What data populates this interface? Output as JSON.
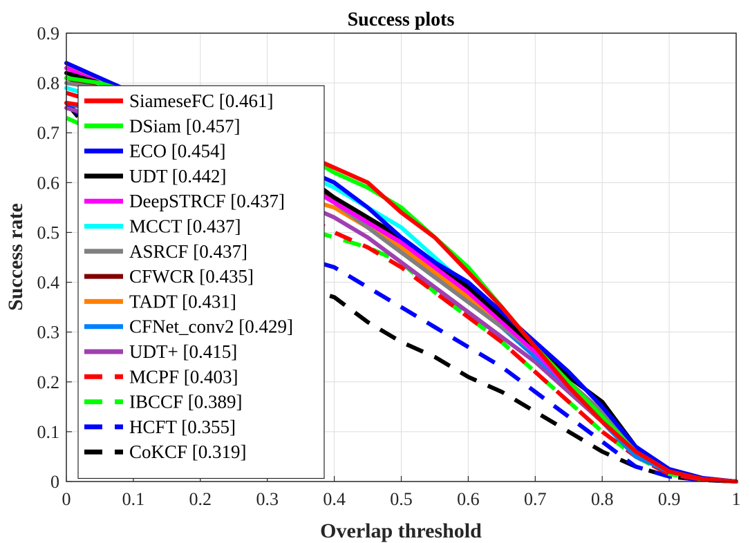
{
  "chart_data": {
    "type": "line",
    "title": "Success plots",
    "xlabel": "Overlap threshold",
    "ylabel": "Success rate",
    "xlim": [
      0,
      1
    ],
    "ylim": [
      0,
      0.9
    ],
    "grid": true,
    "legend_position": "left",
    "x": [
      0,
      0.05,
      0.1,
      0.15,
      0.2,
      0.25,
      0.3,
      0.35,
      0.4,
      0.45,
      0.5,
      0.55,
      0.6,
      0.65,
      0.7,
      0.75,
      0.8,
      0.85,
      0.9,
      0.95,
      1
    ],
    "xticks": [
      "0",
      "0.1",
      "0.2",
      "0.3",
      "0.4",
      "0.5",
      "0.6",
      "0.7",
      "0.8",
      "0.9",
      "1"
    ],
    "yticks": [
      "0",
      "0.1",
      "0.2",
      "0.3",
      "0.4",
      "0.5",
      "0.6",
      "0.7",
      "0.8",
      "0.9"
    ],
    "series": [
      {
        "name": "SiameseFC [0.461]",
        "color": "#ff0000",
        "dashed": false,
        "values": [
          0.76,
          0.75,
          0.74,
          0.73,
          0.72,
          0.71,
          0.69,
          0.66,
          0.63,
          0.6,
          0.54,
          0.49,
          0.42,
          0.35,
          0.27,
          0.19,
          0.12,
          0.06,
          0.02,
          0.005,
          0
        ]
      },
      {
        "name": "DSiam [0.457]",
        "color": "#00ff00",
        "dashed": false,
        "values": [
          0.81,
          0.8,
          0.78,
          0.76,
          0.74,
          0.71,
          0.69,
          0.66,
          0.62,
          0.59,
          0.55,
          0.49,
          0.43,
          0.35,
          0.27,
          0.2,
          0.13,
          0.06,
          0.02,
          0.005,
          0
        ]
      },
      {
        "name": "ECO [0.454]",
        "color": "#0000ff",
        "dashed": false,
        "values": [
          0.84,
          0.81,
          0.78,
          0.75,
          0.72,
          0.69,
          0.66,
          0.63,
          0.6,
          0.55,
          0.49,
          0.44,
          0.4,
          0.34,
          0.28,
          0.22,
          0.15,
          0.07,
          0.025,
          0.007,
          0
        ]
      },
      {
        "name": "UDT [0.442]",
        "color": "#000000",
        "dashed": false,
        "values": [
          0.82,
          0.8,
          0.78,
          0.75,
          0.72,
          0.69,
          0.66,
          0.62,
          0.57,
          0.53,
          0.49,
          0.44,
          0.39,
          0.33,
          0.27,
          0.21,
          0.16,
          0.07,
          0.02,
          0.005,
          0
        ]
      },
      {
        "name": "DeepSTRCF [0.437]",
        "color": "#ff00ff",
        "dashed": false,
        "values": [
          0.83,
          0.8,
          0.77,
          0.74,
          0.71,
          0.68,
          0.64,
          0.6,
          0.56,
          0.52,
          0.48,
          0.43,
          0.38,
          0.32,
          0.26,
          0.19,
          0.13,
          0.06,
          0.02,
          0.005,
          0
        ]
      },
      {
        "name": "MCCT [0.437]",
        "color": "#00ffff",
        "dashed": false,
        "values": [
          0.79,
          0.77,
          0.75,
          0.72,
          0.7,
          0.67,
          0.65,
          0.62,
          0.59,
          0.55,
          0.51,
          0.45,
          0.39,
          0.33,
          0.26,
          0.19,
          0.12,
          0.06,
          0.02,
          0.005,
          0
        ]
      },
      {
        "name": "ASRCF [0.437]",
        "color": "#808080",
        "dashed": false,
        "values": [
          0.8,
          0.79,
          0.78,
          0.76,
          0.73,
          0.69,
          0.65,
          0.6,
          0.56,
          0.51,
          0.46,
          0.41,
          0.36,
          0.31,
          0.26,
          0.2,
          0.14,
          0.06,
          0.02,
          0.005,
          0
        ]
      },
      {
        "name": "CFWCR [0.435]",
        "color": "#800000",
        "dashed": false,
        "values": [
          0.81,
          0.79,
          0.77,
          0.74,
          0.71,
          0.68,
          0.64,
          0.61,
          0.57,
          0.53,
          0.48,
          0.43,
          0.38,
          0.32,
          0.26,
          0.2,
          0.13,
          0.06,
          0.02,
          0.005,
          0
        ]
      },
      {
        "name": "TADT [0.431]",
        "color": "#ff8000",
        "dashed": false,
        "values": [
          0.84,
          0.8,
          0.76,
          0.72,
          0.68,
          0.64,
          0.6,
          0.57,
          0.55,
          0.51,
          0.47,
          0.42,
          0.37,
          0.32,
          0.26,
          0.2,
          0.13,
          0.06,
          0.02,
          0.005,
          0
        ]
      },
      {
        "name": "CFNet_conv2 [0.429]",
        "color": "#0080ff",
        "dashed": false,
        "values": [
          0.76,
          0.74,
          0.72,
          0.7,
          0.68,
          0.66,
          0.63,
          0.6,
          0.56,
          0.52,
          0.47,
          0.42,
          0.37,
          0.31,
          0.25,
          0.19,
          0.12,
          0.05,
          0.02,
          0.005,
          0
        ]
      },
      {
        "name": "UDT+ [0.415]",
        "color": "#a040b0",
        "dashed": false,
        "values": [
          0.75,
          0.73,
          0.71,
          0.68,
          0.65,
          0.62,
          0.59,
          0.56,
          0.53,
          0.49,
          0.44,
          0.39,
          0.34,
          0.29,
          0.24,
          0.18,
          0.12,
          0.05,
          0.02,
          0.005,
          0
        ]
      },
      {
        "name": "MCPF [0.403]",
        "color": "#ff0000",
        "dashed": true,
        "values": [
          0.78,
          0.76,
          0.73,
          0.7,
          0.66,
          0.62,
          0.58,
          0.54,
          0.5,
          0.47,
          0.43,
          0.38,
          0.33,
          0.28,
          0.22,
          0.16,
          0.1,
          0.05,
          0.015,
          0.004,
          0
        ]
      },
      {
        "name": "IBCCF [0.389]",
        "color": "#00ff00",
        "dashed": true,
        "values": [
          0.73,
          0.7,
          0.67,
          0.63,
          0.59,
          0.56,
          0.53,
          0.51,
          0.49,
          0.47,
          0.44,
          0.38,
          0.33,
          0.28,
          0.22,
          0.16,
          0.1,
          0.05,
          0.015,
          0.004,
          0
        ]
      },
      {
        "name": "HCFT [0.355]",
        "color": "#0000ff",
        "dashed": true,
        "values": [
          0.76,
          0.7,
          0.65,
          0.6,
          0.55,
          0.51,
          0.47,
          0.45,
          0.43,
          0.39,
          0.35,
          0.31,
          0.27,
          0.23,
          0.18,
          0.13,
          0.08,
          0.03,
          0.01,
          0.003,
          0
        ]
      },
      {
        "name": "CoKCF [0.319]",
        "color": "#000000",
        "dashed": true,
        "values": [
          0.76,
          0.68,
          0.61,
          0.54,
          0.48,
          0.44,
          0.41,
          0.39,
          0.37,
          0.32,
          0.28,
          0.25,
          0.21,
          0.18,
          0.14,
          0.1,
          0.06,
          0.03,
          0.01,
          0.003,
          0
        ]
      }
    ]
  }
}
